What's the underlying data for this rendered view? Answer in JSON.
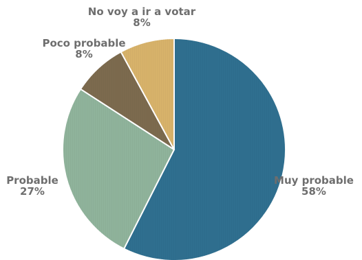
{
  "chart_data": {
    "type": "pie",
    "title": "",
    "slices": [
      {
        "label": "Muy probable",
        "value": 58,
        "value_label": "58%",
        "color": "#2f6f8f"
      },
      {
        "label": "Probable",
        "value": 27,
        "value_label": "27%",
        "color": "#8fb39b"
      },
      {
        "label": "Poco probable",
        "value": 8,
        "value_label": "8%",
        "color": "#7c6a4e"
      },
      {
        "label": "No voy a ir a votar",
        "value": 8,
        "value_label": "8%",
        "color": "#d7b26a"
      }
    ]
  }
}
